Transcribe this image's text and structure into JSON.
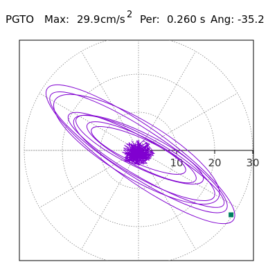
{
  "header": {
    "name": "PGTO",
    "max_label": "Max:",
    "max_value": "29.9",
    "max_unit": "cm/s",
    "max_unit_exp": "2",
    "per_label": "Per:",
    "per_value": "0.260 s",
    "ang_label": "Ang:",
    "ang_value": "-35.2"
  },
  "colors": {
    "trace": "#8000d0",
    "grid": "#808080",
    "axis": "#000000",
    "marker": "#008060",
    "background": "#ffffff"
  },
  "chart_data": {
    "type": "scatter",
    "description_of_scale": "polar orbit plot of horizontal particle motion",
    "r_ticks": [
      10,
      20,
      30
    ],
    "r_max": 30,
    "grid": true,
    "angle_lines_deg": [
      0,
      30,
      60,
      90,
      120,
      150,
      180,
      210,
      240,
      270,
      300,
      330
    ],
    "peak_value": 29.9,
    "peak_angle_deg": -35.2,
    "end_marker": {
      "x": 24.3,
      "y": -16.9
    },
    "orbits": [
      {
        "semi_major": 29.9,
        "semi_minor": 7.2,
        "rotation_deg": -35.2,
        "center": [
          0.5,
          -1.0
        ]
      },
      {
        "semi_major": 27.5,
        "semi_minor": 6.2,
        "rotation_deg": -33.0,
        "center": [
          0.0,
          -0.5
        ]
      },
      {
        "semi_major": 25.0,
        "semi_minor": 7.5,
        "rotation_deg": -31.0,
        "center": [
          -0.5,
          0.3
        ]
      },
      {
        "semi_major": 23.5,
        "semi_minor": 4.8,
        "rotation_deg": -30.0,
        "center": [
          2.0,
          -2.5
        ]
      },
      {
        "semi_major": 21.0,
        "semi_minor": 5.3,
        "rotation_deg": -29.0,
        "center": [
          1.5,
          -2.0
        ]
      },
      {
        "semi_major": 18.5,
        "semi_minor": 4.5,
        "rotation_deg": -26.0,
        "center": [
          0.3,
          0.2
        ]
      },
      {
        "semi_major": 16.0,
        "semi_minor": 3.8,
        "rotation_deg": -27.0,
        "center": [
          0.8,
          -0.5
        ]
      },
      {
        "semi_major": 13.5,
        "semi_minor": 3.3,
        "rotation_deg": -24.0,
        "center": [
          0.0,
          0.0
        ]
      }
    ],
    "core_radius": 3.5
  }
}
